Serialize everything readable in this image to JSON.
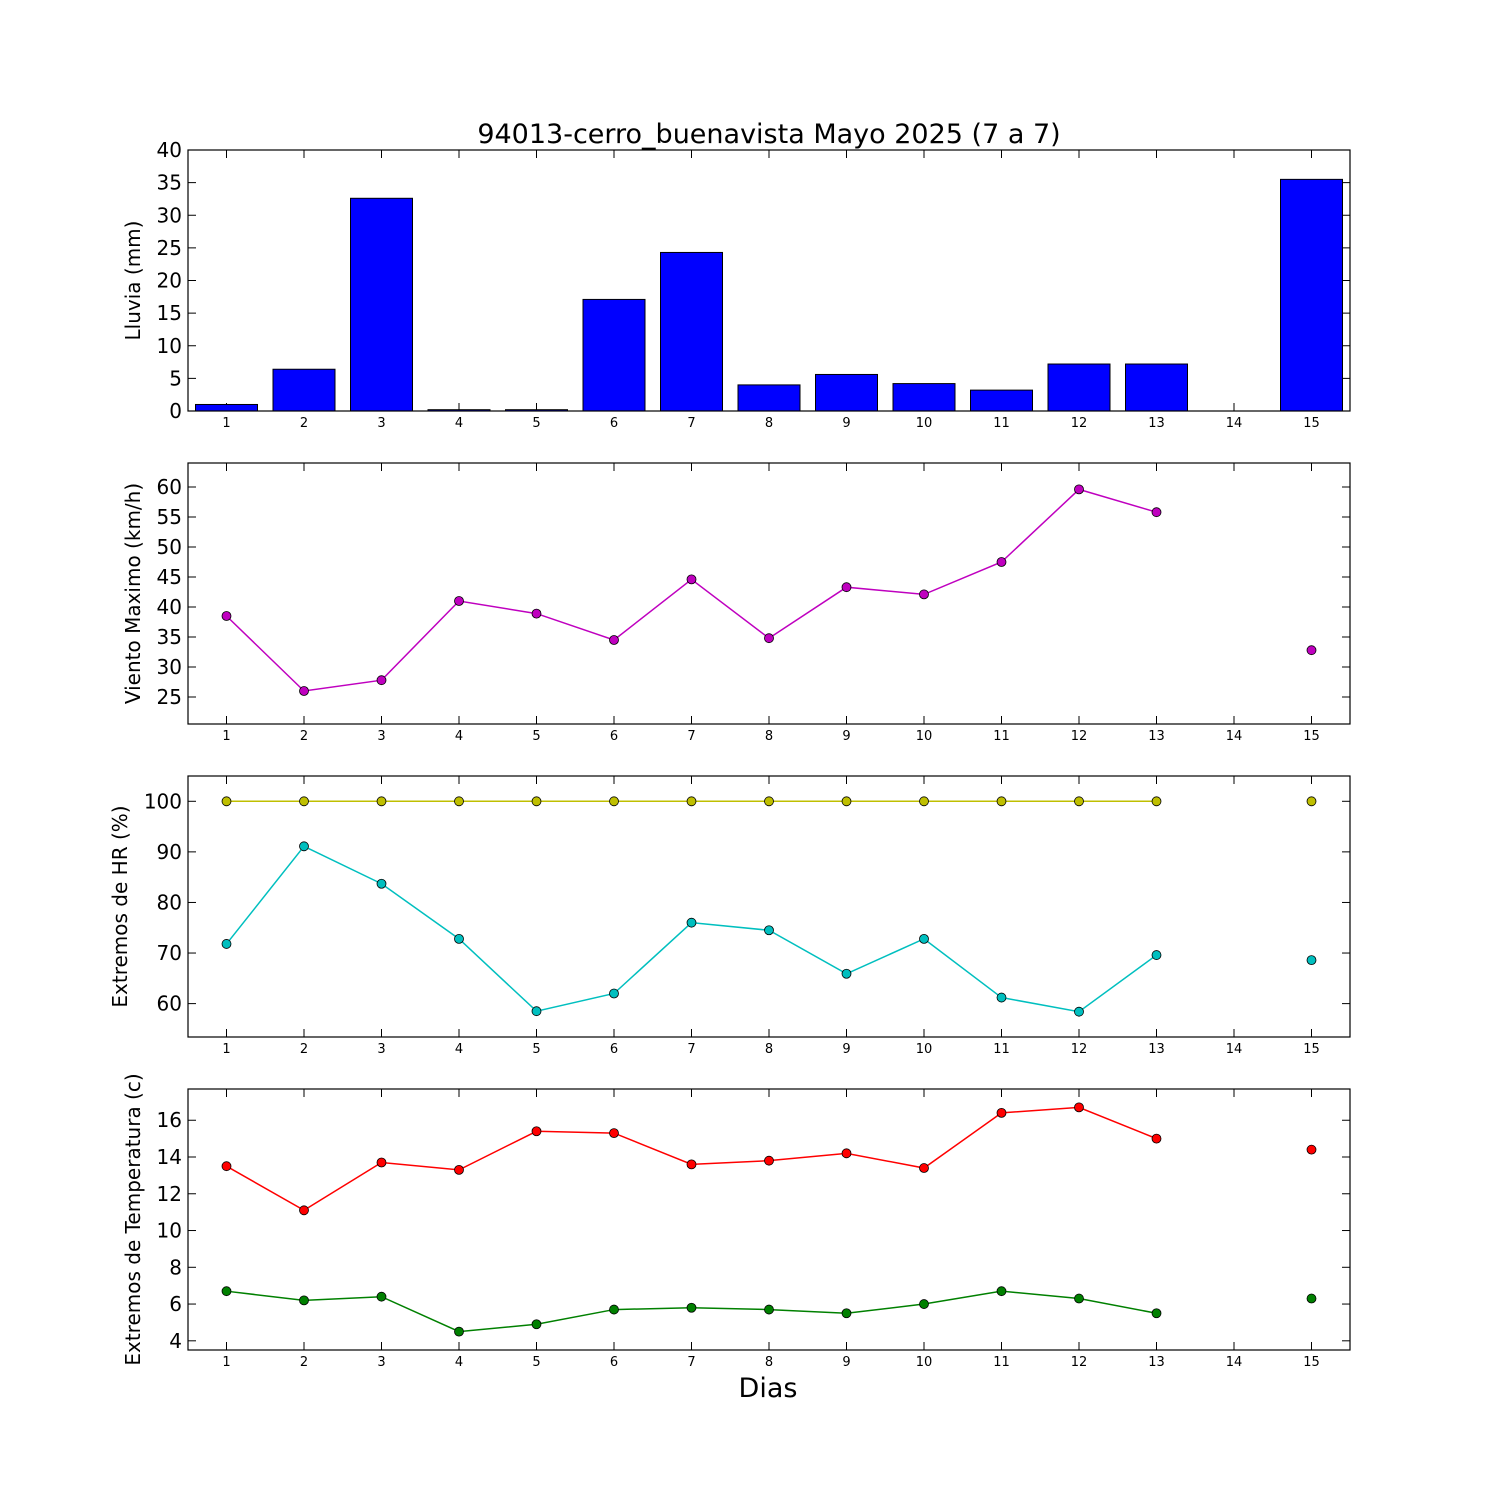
{
  "title": "94013-cerro_buenavista Mayo 2025  (7 a 7)",
  "xlabel": "Dias",
  "colors": {
    "bar": "#0000ff",
    "wind": "#bf00bf",
    "hr_max": "#bfbf00",
    "hr_min": "#00bfbf",
    "temp_max": "#ff0000",
    "temp_min": "#008000"
  },
  "chart_data": [
    {
      "type": "bar",
      "ylabel": "Lluvia (mm)",
      "categories": [
        "1",
        "2",
        "3",
        "4",
        "5",
        "6",
        "7",
        "8",
        "9",
        "10",
        "11",
        "12",
        "13",
        "14",
        "15"
      ],
      "ylim": [
        0,
        40
      ],
      "yticks": [
        0,
        5,
        10,
        15,
        20,
        25,
        30,
        35,
        40
      ],
      "series": [
        {
          "values": [
            1.0,
            6.4,
            32.6,
            0.2,
            0.2,
            17.1,
            24.3,
            4.0,
            5.6,
            4.2,
            3.2,
            7.2,
            7.2,
            null,
            35.5
          ]
        }
      ]
    },
    {
      "type": "line",
      "ylabel": "Viento Maximo (km/h)",
      "categories": [
        "1",
        "2",
        "3",
        "4",
        "5",
        "6",
        "7",
        "8",
        "9",
        "10",
        "11",
        "12",
        "13",
        "14",
        "15"
      ],
      "ylim": [
        20.5,
        64
      ],
      "yticks": [
        25,
        30,
        35,
        40,
        45,
        50,
        55,
        60
      ],
      "series": [
        {
          "values": [
            38.5,
            26.0,
            27.8,
            41.0,
            38.9,
            34.5,
            44.6,
            34.8,
            43.3,
            42.1,
            47.5,
            59.6,
            55.8,
            null,
            32.8
          ]
        }
      ]
    },
    {
      "type": "line",
      "ylabel": "Extremos de HR (%)",
      "categories": [
        "1",
        "2",
        "3",
        "4",
        "5",
        "6",
        "7",
        "8",
        "9",
        "10",
        "11",
        "12",
        "13",
        "14",
        "15"
      ],
      "ylim": [
        53.4,
        105
      ],
      "yticks": [
        60,
        70,
        80,
        90,
        100
      ],
      "series": [
        {
          "values": [
            100,
            100,
            100,
            100,
            100,
            100,
            100,
            100,
            100,
            100,
            100,
            100,
            100,
            null,
            100
          ]
        },
        {
          "values": [
            71.8,
            91.1,
            83.7,
            72.8,
            58.5,
            62.0,
            76.0,
            74.5,
            65.9,
            72.8,
            61.2,
            58.4,
            69.6,
            null,
            68.6
          ]
        }
      ]
    },
    {
      "type": "line",
      "ylabel": "Extremos de Temperatura (c)",
      "categories": [
        "1",
        "2",
        "3",
        "4",
        "5",
        "6",
        "7",
        "8",
        "9",
        "10",
        "11",
        "12",
        "13",
        "14",
        "15"
      ],
      "ylim": [
        3.5,
        17.7
      ],
      "yticks": [
        4,
        6,
        8,
        10,
        12,
        14,
        16
      ],
      "series": [
        {
          "values": [
            13.5,
            11.1,
            13.7,
            13.3,
            15.4,
            15.3,
            13.6,
            13.8,
            14.2,
            13.4,
            16.4,
            16.7,
            15.0,
            null,
            14.4
          ]
        },
        {
          "values": [
            6.7,
            6.2,
            6.4,
            4.5,
            4.9,
            5.7,
            5.8,
            5.7,
            5.5,
            6.0,
            6.7,
            6.3,
            5.5,
            null,
            6.3
          ]
        }
      ]
    }
  ]
}
